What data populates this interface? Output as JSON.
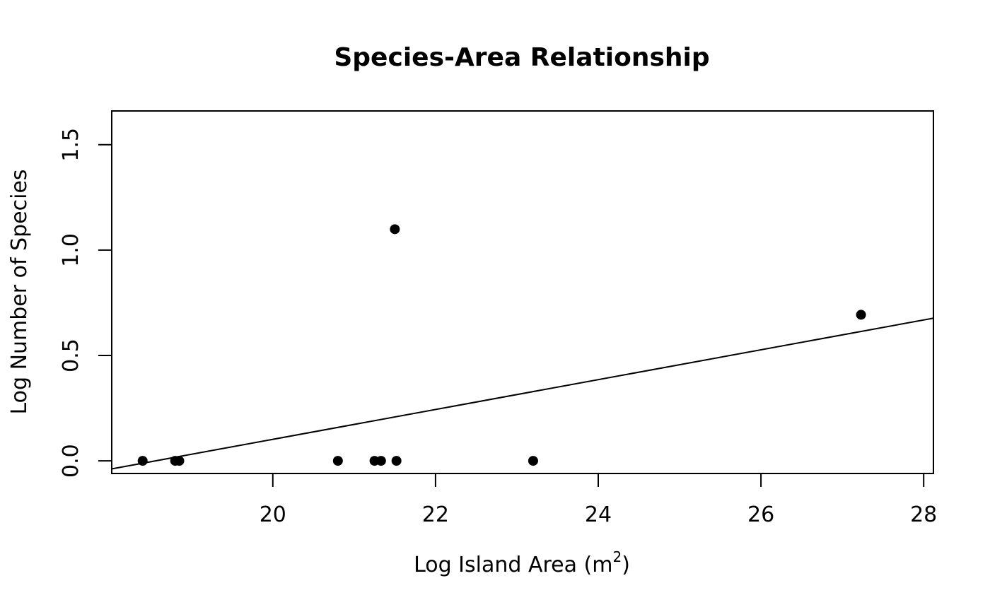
{
  "chart_data": {
    "type": "scatter",
    "title": "Species-Area Relationship",
    "xlabel": "Log Island Area (m",
    "xlabel_superscript": "2",
    "xlabel_suffix": ")",
    "ylabel": "Log Number of Species",
    "xlim": [
      18.02,
      28.12
    ],
    "ylim": [
      -0.06,
      1.66
    ],
    "x_ticks": [
      {
        "value": 20,
        "label": "20"
      },
      {
        "value": 22,
        "label": "22"
      },
      {
        "value": 24,
        "label": "24"
      },
      {
        "value": 26,
        "label": "26"
      },
      {
        "value": 28,
        "label": "28"
      }
    ],
    "y_ticks": [
      {
        "value": 0.0,
        "label": "0.0"
      },
      {
        "value": 0.5,
        "label": "0.5"
      },
      {
        "value": 1.0,
        "label": "1.0"
      },
      {
        "value": 1.5,
        "label": "1.5"
      }
    ],
    "points": [
      {
        "x": 18.4,
        "y": 0
      },
      {
        "x": 18.8,
        "y": 0
      },
      {
        "x": 18.85,
        "y": 0
      },
      {
        "x": 20.8,
        "y": 0
      },
      {
        "x": 21.25,
        "y": 0
      },
      {
        "x": 21.33,
        "y": 0
      },
      {
        "x": 21.5,
        "y": 1.099
      },
      {
        "x": 21.52,
        "y": 0
      },
      {
        "x": 23.2,
        "y": 0
      },
      {
        "x": 27.23,
        "y": 0.693
      }
    ],
    "fit_line": {
      "intercept": -1.314,
      "slope": 0.0708
    },
    "grid": false,
    "legend": "none",
    "colors": {
      "points": "#000000",
      "line": "#000000",
      "background": "#ffffff"
    }
  }
}
